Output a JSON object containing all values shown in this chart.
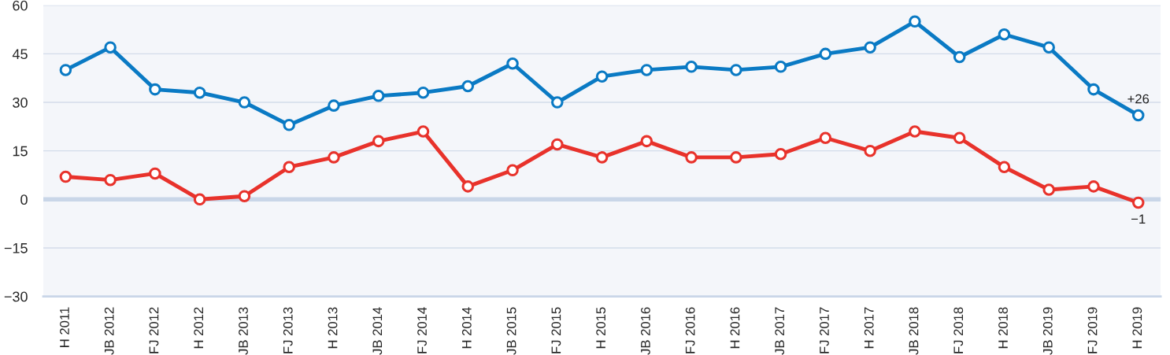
{
  "chart_data": {
    "type": "line",
    "categories": [
      "H 2011",
      "JB 2012",
      "FJ 2012",
      "H 2012",
      "JB 2013",
      "FJ 2013",
      "H 2013",
      "JB 2014",
      "FJ 2014",
      "H 2014",
      "JB 2015",
      "FJ 2015",
      "H 2015",
      "JB 2016",
      "FJ 2016",
      "H 2016",
      "JB 2017",
      "FJ 2017",
      "H 2017",
      "JB 2018",
      "FJ 2018",
      "H 2018",
      "JB 2019",
      "FJ 2019",
      "H 2019"
    ],
    "series": [
      {
        "color": "#0a7ac4",
        "values": [
          40,
          47,
          34,
          33,
          30,
          23,
          29,
          32,
          33,
          35,
          42,
          30,
          38,
          40,
          41,
          40,
          41,
          45,
          47,
          55,
          44,
          51,
          47,
          34,
          26
        ],
        "value_labels": [
          null,
          null,
          null,
          null,
          null,
          null,
          null,
          null,
          null,
          null,
          null,
          null,
          null,
          null,
          null,
          null,
          null,
          null,
          null,
          null,
          null,
          null,
          null,
          null,
          "+26"
        ]
      },
      {
        "color": "#e8322b",
        "values": [
          7,
          6,
          8,
          0,
          1,
          10,
          13,
          18,
          21,
          4,
          9,
          17,
          13,
          18,
          13,
          13,
          14,
          19,
          15,
          21,
          19,
          10,
          3,
          4,
          -1
        ],
        "value_labels": [
          null,
          null,
          null,
          null,
          null,
          null,
          null,
          null,
          null,
          null,
          null,
          null,
          null,
          null,
          null,
          null,
          null,
          null,
          null,
          null,
          null,
          null,
          null,
          null,
          "−1"
        ]
      }
    ],
    "ylim": [
      -30,
      60
    ],
    "yticks": [
      -30,
      -15,
      0,
      15,
      30,
      45,
      60
    ],
    "ref_lines": [
      {
        "axis": "y",
        "value": 0,
        "color": "#c9d6e8"
      }
    ],
    "grid": "y",
    "marker": "circle",
    "line_style": "solid",
    "legend": false
  }
}
